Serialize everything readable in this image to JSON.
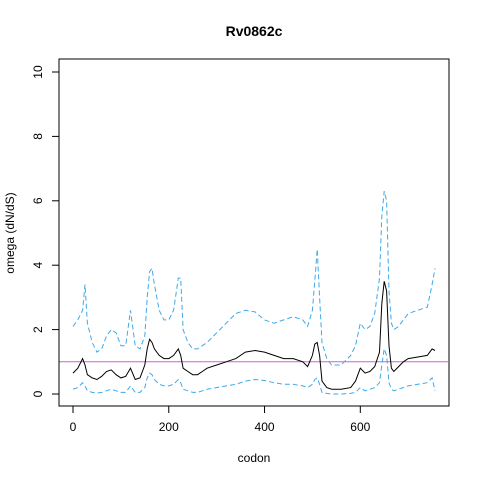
{
  "chart_data": {
    "type": "line",
    "title": "Rv0862c",
    "xlabel": "codon",
    "ylabel": "omega (dN/dS)",
    "xlim": [
      0,
      756
    ],
    "ylim": [
      0,
      10
    ],
    "x_ticks": [
      "0",
      "200",
      "400",
      "600"
    ],
    "y_ticks": [
      "0",
      "2",
      "4",
      "6",
      "8",
      "10"
    ],
    "x_tick_values": [
      0,
      200,
      400,
      600
    ],
    "y_tick_values": [
      0,
      2,
      4,
      6,
      8,
      10
    ],
    "grid": false,
    "reference_line": {
      "y": 1,
      "color": "#cc66cc"
    },
    "series": [
      {
        "role": "estimate",
        "color": "#000000",
        "style": "solid",
        "x": [
          0,
          10,
          20,
          25,
          30,
          40,
          50,
          60,
          70,
          80,
          90,
          100,
          110,
          120,
          130,
          140,
          150,
          155,
          160,
          165,
          170,
          180,
          190,
          200,
          210,
          220,
          225,
          230,
          240,
          250,
          260,
          270,
          280,
          300,
          320,
          340,
          360,
          380,
          400,
          420,
          440,
          460,
          480,
          490,
          500,
          505,
          510,
          515,
          520,
          530,
          540,
          560,
          580,
          590,
          600,
          610,
          620,
          630,
          640,
          645,
          650,
          655,
          660,
          665,
          670,
          680,
          690,
          700,
          720,
          740,
          750,
          756
        ],
        "y": [
          0.65,
          0.8,
          1.1,
          0.9,
          0.6,
          0.5,
          0.45,
          0.55,
          0.7,
          0.75,
          0.6,
          0.5,
          0.55,
          0.8,
          0.45,
          0.5,
          0.9,
          1.4,
          1.7,
          1.6,
          1.4,
          1.2,
          1.1,
          1.1,
          1.2,
          1.4,
          1.2,
          0.8,
          0.7,
          0.6,
          0.6,
          0.7,
          0.8,
          0.9,
          1.0,
          1.1,
          1.3,
          1.35,
          1.3,
          1.2,
          1.1,
          1.1,
          1.0,
          0.85,
          1.2,
          1.55,
          1.6,
          1.2,
          0.4,
          0.2,
          0.15,
          0.15,
          0.2,
          0.4,
          0.8,
          0.65,
          0.7,
          0.85,
          1.3,
          2.8,
          3.5,
          3.2,
          1.5,
          0.8,
          0.7,
          0.85,
          1.0,
          1.1,
          1.15,
          1.2,
          1.4,
          1.35
        ]
      },
      {
        "role": "upper",
        "color": "#3fa9e8",
        "style": "dashed",
        "x": [
          0,
          10,
          20,
          25,
          30,
          40,
          50,
          60,
          70,
          80,
          90,
          100,
          110,
          120,
          130,
          140,
          150,
          155,
          160,
          165,
          170,
          180,
          190,
          200,
          210,
          220,
          225,
          230,
          240,
          250,
          260,
          270,
          280,
          300,
          320,
          340,
          360,
          380,
          400,
          420,
          440,
          460,
          480,
          490,
          500,
          505,
          510,
          515,
          520,
          530,
          540,
          560,
          580,
          590,
          600,
          610,
          620,
          630,
          640,
          645,
          650,
          655,
          660,
          665,
          670,
          680,
          690,
          700,
          720,
          740,
          750,
          756
        ],
        "y": [
          2.1,
          2.3,
          2.6,
          3.4,
          2.2,
          1.6,
          1.3,
          1.4,
          1.8,
          2.0,
          1.9,
          1.5,
          1.5,
          2.6,
          1.5,
          1.4,
          1.8,
          3.0,
          3.8,
          3.9,
          3.4,
          2.6,
          2.3,
          2.3,
          2.6,
          3.6,
          3.6,
          2.0,
          1.6,
          1.4,
          1.4,
          1.5,
          1.6,
          1.9,
          2.2,
          2.5,
          2.6,
          2.55,
          2.3,
          2.2,
          2.3,
          2.4,
          2.3,
          2.1,
          2.6,
          3.5,
          4.5,
          3.0,
          1.6,
          1.1,
          0.9,
          0.9,
          1.2,
          1.5,
          2.2,
          2.0,
          2.1,
          2.5,
          3.6,
          5.5,
          6.3,
          6.0,
          3.2,
          2.2,
          2.0,
          2.1,
          2.3,
          2.5,
          2.6,
          2.7,
          3.4,
          3.9
        ]
      },
      {
        "role": "lower",
        "color": "#3fa9e8",
        "style": "dashed",
        "x": [
          0,
          10,
          20,
          25,
          30,
          40,
          50,
          60,
          70,
          80,
          90,
          100,
          110,
          120,
          130,
          140,
          150,
          155,
          160,
          165,
          170,
          180,
          190,
          200,
          210,
          220,
          225,
          230,
          240,
          250,
          260,
          270,
          280,
          300,
          320,
          340,
          360,
          380,
          400,
          420,
          440,
          460,
          480,
          490,
          500,
          505,
          510,
          515,
          520,
          530,
          540,
          560,
          580,
          590,
          600,
          610,
          620,
          630,
          640,
          645,
          650,
          655,
          660,
          665,
          670,
          680,
          690,
          700,
          720,
          740,
          750,
          756
        ],
        "y": [
          0.15,
          0.2,
          0.35,
          0.25,
          0.1,
          0.05,
          0.03,
          0.05,
          0.1,
          0.15,
          0.1,
          0.05,
          0.05,
          0.25,
          0.05,
          0.05,
          0.2,
          0.5,
          0.65,
          0.6,
          0.45,
          0.3,
          0.25,
          0.25,
          0.3,
          0.45,
          0.35,
          0.15,
          0.1,
          0.05,
          0.05,
          0.1,
          0.15,
          0.2,
          0.25,
          0.3,
          0.4,
          0.45,
          0.42,
          0.35,
          0.3,
          0.3,
          0.25,
          0.2,
          0.3,
          0.45,
          0.5,
          0.3,
          0.05,
          0.02,
          0.0,
          0.0,
          0.02,
          0.05,
          0.2,
          0.1,
          0.15,
          0.2,
          0.35,
          0.9,
          1.4,
          1.2,
          0.35,
          0.15,
          0.1,
          0.15,
          0.2,
          0.25,
          0.3,
          0.35,
          0.5,
          0.1
        ]
      }
    ]
  }
}
